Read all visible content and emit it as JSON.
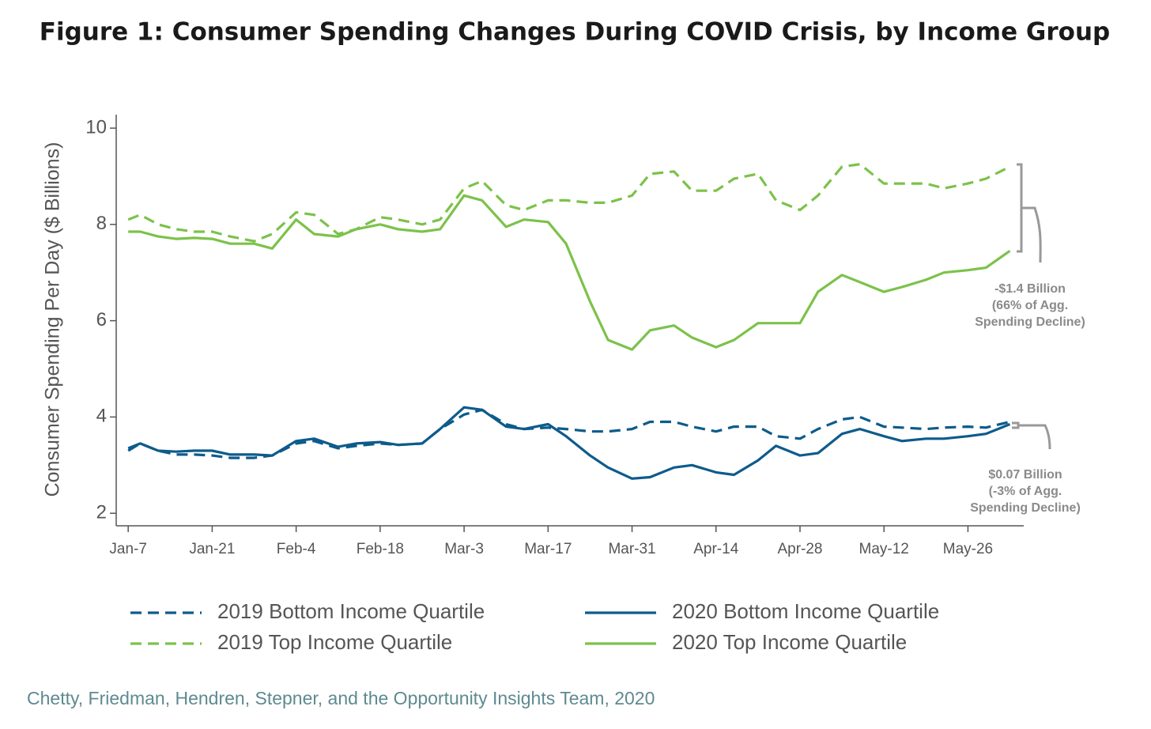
{
  "chart_data": {
    "type": "line",
    "title": "Figure 1: Consumer Spending Changes During COVID Crisis, by Income Group",
    "y_label": "Consumer Spending Per Day ($ Billions)",
    "source": "Chetty, Friedman, Hendren, Stepner, and the Opportunity Insights Team, 2020",
    "x": [
      0,
      2,
      5,
      8,
      11,
      14,
      17,
      21,
      24,
      28,
      31,
      35,
      38,
      42,
      45,
      49,
      52,
      56,
      59,
      63,
      66,
      70,
      73,
      77,
      80,
      84,
      87,
      91,
      94,
      98,
      101,
      105,
      108,
      112,
      115,
      119,
      122,
      126,
      129,
      133,
      136,
      140,
      143,
      147
    ],
    "xlim": [
      -2,
      149.3
    ],
    "xticks": [
      {
        "value": 0,
        "label": "Jan-7"
      },
      {
        "value": 14,
        "label": "Jan-21"
      },
      {
        "value": 28,
        "label": "Feb-4"
      },
      {
        "value": 42,
        "label": "Feb-18"
      },
      {
        "value": 56,
        "label": "Mar-3"
      },
      {
        "value": 70,
        "label": "Mar-17"
      },
      {
        "value": 84,
        "label": "Mar-31"
      },
      {
        "value": 98,
        "label": "Apr-14"
      },
      {
        "value": 112,
        "label": "Apr-28"
      },
      {
        "value": 126,
        "label": "May-12"
      },
      {
        "value": 140,
        "label": "May-26"
      }
    ],
    "ylim": [
      1.74,
      10.28
    ],
    "yticks": [
      2,
      4,
      6,
      8,
      10
    ],
    "series": [
      {
        "name": "2019 Bottom Income Quartile",
        "color": "#0d5b8c",
        "dashed": true,
        "values": [
          3.3,
          3.45,
          3.3,
          3.22,
          3.22,
          3.2,
          3.15,
          3.15,
          3.2,
          3.45,
          3.5,
          3.35,
          3.4,
          3.45,
          3.42,
          3.45,
          3.75,
          4.05,
          4.15,
          3.85,
          3.75,
          3.78,
          3.75,
          3.7,
          3.7,
          3.75,
          3.9,
          3.9,
          3.8,
          3.7,
          3.8,
          3.8,
          3.6,
          3.55,
          3.75,
          3.95,
          4.0,
          3.8,
          3.78,
          3.75,
          3.78,
          3.8,
          3.78,
          3.9
        ]
      },
      {
        "name": "2020 Bottom Income Quartile",
        "color": "#0d5b8c",
        "dashed": false,
        "values": [
          3.35,
          3.45,
          3.3,
          3.28,
          3.3,
          3.3,
          3.22,
          3.22,
          3.2,
          3.5,
          3.55,
          3.38,
          3.45,
          3.48,
          3.42,
          3.45,
          3.75,
          4.2,
          4.15,
          3.8,
          3.75,
          3.85,
          3.6,
          3.2,
          2.95,
          2.72,
          2.75,
          2.95,
          3.0,
          2.85,
          2.8,
          3.1,
          3.4,
          3.2,
          3.25,
          3.65,
          3.75,
          3.6,
          3.5,
          3.55,
          3.55,
          3.6,
          3.65,
          3.85
        ]
      },
      {
        "name": "2019 Top Income Quartile",
        "color": "#7cc24a",
        "dashed": true,
        "values": [
          8.1,
          8.2,
          8.0,
          7.9,
          7.85,
          7.85,
          7.75,
          7.65,
          7.8,
          8.25,
          8.2,
          7.8,
          7.9,
          8.15,
          8.1,
          8.0,
          8.1,
          8.75,
          8.9,
          8.4,
          8.3,
          8.5,
          8.5,
          8.45,
          8.45,
          8.6,
          9.05,
          9.1,
          8.7,
          8.7,
          8.95,
          9.05,
          8.5,
          8.3,
          8.6,
          9.2,
          9.25,
          8.85,
          8.85,
          8.85,
          8.75,
          8.85,
          8.95,
          9.2
        ]
      },
      {
        "name": "2020 Top Income Quartile",
        "color": "#7cc24a",
        "dashed": false,
        "values": [
          7.85,
          7.85,
          7.75,
          7.7,
          7.72,
          7.7,
          7.6,
          7.6,
          7.5,
          8.1,
          7.8,
          7.75,
          7.9,
          8.0,
          7.9,
          7.85,
          7.9,
          8.6,
          8.5,
          7.95,
          8.1,
          8.05,
          7.6,
          6.4,
          5.6,
          5.4,
          5.8,
          5.9,
          5.65,
          5.45,
          5.6,
          5.95,
          5.95,
          5.95,
          6.6,
          6.95,
          6.8,
          6.6,
          6.7,
          6.85,
          7.0,
          7.05,
          7.1,
          7.45
        ]
      }
    ],
    "annotations": [
      {
        "lines": [
          "-$1.4 Billion",
          "(66%  of Agg.",
          "Spending Decline)"
        ]
      },
      {
        "lines": [
          "$0.07 Billion",
          "(-3%  of Agg.",
          "Spending Decline)"
        ]
      }
    ]
  }
}
